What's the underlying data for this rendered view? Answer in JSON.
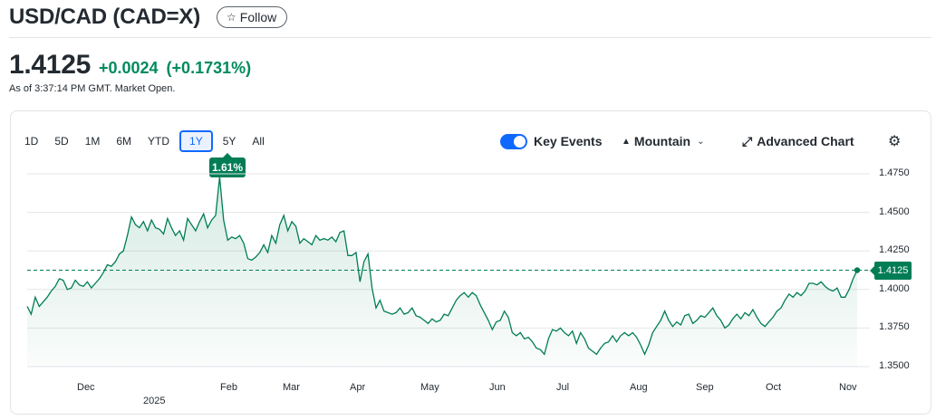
{
  "header": {
    "title": "USD/CAD (CAD=X)",
    "follow_label": "Follow",
    "follow_icon": "star-outline-icon"
  },
  "quote": {
    "price": "1.4125",
    "change": "+0.0024",
    "change_pct": "(+0.1731%)",
    "as_of": "As of 3:37:14 PM GMT. Market Open.",
    "up_color": "#008a5e"
  },
  "ranges": [
    "1D",
    "5D",
    "1M",
    "6M",
    "YTD",
    "1Y",
    "5Y",
    "All"
  ],
  "active_range": "1Y",
  "range_badge": "1.61%",
  "toolbar": {
    "key_events_label": "Key Events",
    "key_events_on": true,
    "chart_type_label": "Mountain",
    "advanced_label": "Advanced Chart",
    "settings_icon": "gear-icon"
  },
  "chart_data": {
    "type": "area",
    "yticks": [
      "1.4750",
      "1.4500",
      "1.4250",
      "1.4000",
      "1.3750",
      "1.3500"
    ],
    "ylim": [
      1.35,
      1.475
    ],
    "months": [
      "Dec",
      "Feb",
      "Mar",
      "Apr",
      "May",
      "Jun",
      "Jul",
      "Aug",
      "Sep",
      "Oct",
      "Nov"
    ],
    "year_label": "2025",
    "current_value": "1.4125",
    "line_color": "#007d55",
    "series": [
      {
        "values": [
          1.389,
          1.384,
          1.395,
          1.389,
          1.392,
          1.395,
          1.399,
          1.402,
          1.407,
          1.406,
          1.4,
          1.401,
          1.406,
          1.403,
          1.402,
          1.405,
          1.401,
          1.404,
          1.407,
          1.411,
          1.416,
          1.415,
          1.418,
          1.423,
          1.425,
          1.435,
          1.447,
          1.442,
          1.44,
          1.444,
          1.438,
          1.445,
          1.44,
          1.439,
          1.436,
          1.446,
          1.44,
          1.435,
          1.438,
          1.432,
          1.446,
          1.442,
          1.438,
          1.444,
          1.449,
          1.44,
          1.445,
          1.448,
          1.473,
          1.445,
          1.432,
          1.434,
          1.433,
          1.435,
          1.43,
          1.42,
          1.419,
          1.421,
          1.424,
          1.429,
          1.424,
          1.435,
          1.43,
          1.442,
          1.448,
          1.438,
          1.444,
          1.441,
          1.43,
          1.433,
          1.431,
          1.429,
          1.435,
          1.432,
          1.433,
          1.432,
          1.434,
          1.431,
          1.437,
          1.438,
          1.422,
          1.422,
          1.424,
          1.405,
          1.418,
          1.423,
          1.401,
          1.388,
          1.393,
          1.386,
          1.385,
          1.384,
          1.385,
          1.388,
          1.384,
          1.385,
          1.388,
          1.383,
          1.382,
          1.38,
          1.378,
          1.381,
          1.379,
          1.38,
          1.384,
          1.383,
          1.388,
          1.393,
          1.396,
          1.398,
          1.395,
          1.398,
          1.396,
          1.39,
          1.385,
          1.38,
          1.374,
          1.379,
          1.38,
          1.386,
          1.382,
          1.372,
          1.37,
          1.372,
          1.368,
          1.369,
          1.366,
          1.362,
          1.361,
          1.358,
          1.368,
          1.374,
          1.373,
          1.375,
          1.372,
          1.37,
          1.373,
          1.365,
          1.372,
          1.368,
          1.362,
          1.36,
          1.358,
          1.362,
          1.365,
          1.366,
          1.37,
          1.366,
          1.37,
          1.372,
          1.37,
          1.372,
          1.369,
          1.364,
          1.358,
          1.364,
          1.372,
          1.376,
          1.38,
          1.386,
          1.38,
          1.376,
          1.379,
          1.377,
          1.383,
          1.384,
          1.378,
          1.38,
          1.383,
          1.382,
          1.385,
          1.388,
          1.383,
          1.38,
          1.375,
          1.377,
          1.381,
          1.384,
          1.381,
          1.385,
          1.383,
          1.387,
          1.382,
          1.378,
          1.376,
          1.379,
          1.382,
          1.386,
          1.388,
          1.393,
          1.397,
          1.395,
          1.398,
          1.396,
          1.399,
          1.404,
          1.404,
          1.403,
          1.405,
          1.402,
          1.4,
          1.399,
          1.401,
          1.395,
          1.395,
          1.4,
          1.407,
          1.4125
        ]
      }
    ]
  }
}
